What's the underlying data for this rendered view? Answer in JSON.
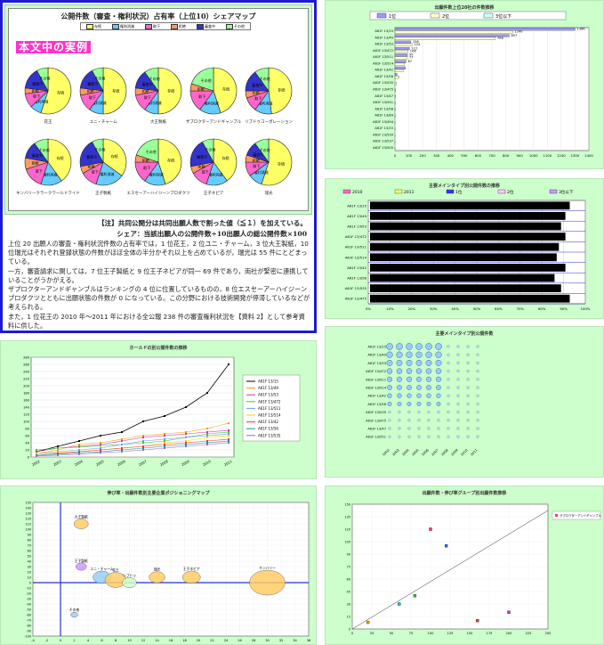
{
  "main": {
    "pie_title": "公開件数（審査・権利状況）占有率（上位10）シェアマップ",
    "badge": "本文中の実例",
    "legend": [
      {
        "label": "存続",
        "color": "#ffff66"
      },
      {
        "label": "権利消滅",
        "color": "#66ccff"
      },
      {
        "label": "取下",
        "color": "#ff66cc"
      },
      {
        "label": "拒絶",
        "color": "#ff9966"
      },
      {
        "label": "審査中",
        "color": "#3333cc"
      },
      {
        "label": "その他",
        "color": "#99ff99"
      }
    ],
    "note1": "【注】共同公開分は共同出願人数で割った値（≦１）を加えている。",
    "note2": "シェア：当該出願人の公開件数÷10出願人の総公開件数×100",
    "paragraphs": [
      "上位 20 出願人の審査・権利状況件数の占有率では，1 位花王，2 位ユニ・チャーム，3 位大王製紙，10 位瑞光はそれぞれ登録状態の件数がほぼ全体の半分かそれ以上を占めているが，瑞光は 55 件にとどまっている。",
      "一方，審査請求に関しては，7 位王子製紙と 9 位王子ネピアが同一 69 件であり，両社が緊密に連携していることがうかがえる。",
      "ザプロクターアンドギャンブルはランキングの 4 位に位置しているものの，8 位エスセーアーハイジーンプロダクツとともに出願状態の件数が 0 になっている。この分野における技術開発が停滞しているなどが考えられる。",
      "また，1 位花王の 2010 年～2011 年における全公報 238 件の審査権利状況を【資料 2】として参考資料に供した。"
    ]
  },
  "chart_data": [
    {
      "type": "pie",
      "title": "公開件数（審査・権利状況）占有率（上位10）シェアマップ",
      "categories": [
        "存続",
        "権利消滅",
        "取下",
        "拒絶",
        "審査中",
        "その他"
      ],
      "pies": [
        {
          "name": "花王",
          "values": [
            55,
            8,
            10,
            4,
            15,
            8
          ]
        },
        {
          "name": "ユニ・チャーム",
          "values": [
            50,
            10,
            12,
            5,
            15,
            8
          ]
        },
        {
          "name": "大王製紙",
          "values": [
            50,
            10,
            12,
            5,
            13,
            10
          ]
        },
        {
          "name": "ザプロクターアンドギャンブル",
          "values": [
            45,
            15,
            15,
            5,
            0,
            20
          ]
        },
        {
          "name": "リブドゥコーポレーション",
          "values": [
            48,
            12,
            10,
            5,
            15,
            10
          ]
        },
        {
          "name": "キンバリークラークワールドワイド",
          "values": [
            40,
            15,
            15,
            8,
            12,
            10
          ]
        },
        {
          "name": "王子製紙",
          "values": [
            35,
            20,
            12,
            5,
            20,
            8
          ]
        },
        {
          "name": "エスセーアーハイジーンプロダクツ",
          "values": [
            45,
            15,
            15,
            5,
            0,
            20
          ]
        },
        {
          "name": "王子ネピア",
          "values": [
            40,
            15,
            12,
            5,
            20,
            8
          ]
        },
        {
          "name": "瑞光",
          "values": [
            55,
            10,
            10,
            5,
            10,
            10
          ]
        }
      ]
    },
    {
      "type": "bar",
      "title": "出願件数上位20社の件数推移",
      "legend": [
        "1位",
        "2位",
        "3位以下"
      ],
      "categories": [
        "A61F 13/15",
        "A61F 13/49",
        "A61F 13/53",
        "A61F 13/472",
        "A61F 13/511",
        "A61F 13/514",
        "A61F 13/42",
        "A61F 13/56",
        "A61F 13/535",
        "A61F 13/475",
        "A61F 13/47",
        "A61F 13/551",
        "A61F 13/58",
        "A61F 13/84",
        "A61F 13/494",
        "A61F 13/15",
        "A61F 13/539",
        "A61F 13/537",
        "A61F 13/505"
      ],
      "series": [
        {
          "name": "1位",
          "values": [
            1300,
            825,
            115,
            105,
            90,
            80,
            75,
            15,
            0,
            0,
            0,
            0,
            0,
            0,
            0,
            0,
            0,
            0,
            0
          ]
        },
        {
          "name": "2位",
          "values": [
            850,
            725,
            125,
            95,
            90,
            70,
            60,
            30,
            10,
            5,
            5,
            3,
            3,
            3,
            2,
            2,
            2,
            2,
            2
          ]
        }
      ],
      "xlim": [
        0,
        1400
      ],
      "x_ticks": [
        "0",
        "100",
        "200",
        "300",
        "400",
        "500",
        "600",
        "700",
        "800",
        "900",
        "1000",
        "1100",
        "1200",
        "1300",
        "1400"
      ],
      "data_labels": [
        "1366",
        "1240",
        "857",
        "706",
        "158",
        "124",
        "112",
        "106",
        "95",
        "77",
        "67"
      ]
    },
    {
      "type": "bar",
      "title": "主要メインタイプ別公開件数の推移",
      "legend": [
        "2010",
        "2011",
        "1位",
        "2位",
        "3位以下"
      ],
      "categories": [
        "A61F 13/15",
        "A61F 13/49",
        "A61F 13/53",
        "A61F 13/472",
        "A61F 13/511",
        "A61F 13/514",
        "A61F 13/42",
        "A61F 13/56",
        "A61F 13/535",
        "A61F 13/475"
      ],
      "x_ticks": [
        "0%",
        "10%",
        "20%",
        "30%",
        "40%",
        "50%",
        "60%",
        "70%",
        "80%",
        "90%",
        "100%"
      ]
    },
    {
      "type": "line",
      "title": "ホールドの別公開件数の推移",
      "x": [
        "2002",
        "2003",
        "2004",
        "2005",
        "2006",
        "2007",
        "2008",
        "2009",
        "2010",
        "2011"
      ],
      "series": [
        {
          "name": "A61F 13/15",
          "values": [
            15,
            30,
            45,
            60,
            70,
            100,
            115,
            140,
            180,
            260
          ]
        },
        {
          "name": "A61F 13/49",
          "values": [
            10,
            20,
            35,
            40,
            50,
            60,
            65,
            70,
            80,
            95
          ]
        },
        {
          "name": "A61F 13/53",
          "values": [
            15,
            25,
            30,
            35,
            45,
            55,
            60,
            65,
            70,
            75
          ]
        },
        {
          "name": "A61F 13/472",
          "values": [
            20,
            25,
            28,
            32,
            35,
            40,
            45,
            55,
            65,
            70
          ]
        },
        {
          "name": "A61F 13/511",
          "values": [
            10,
            15,
            20,
            25,
            35,
            45,
            50,
            55,
            60,
            65
          ]
        },
        {
          "name": "A61F 13/514",
          "values": [
            10,
            12,
            15,
            20,
            25,
            30,
            40,
            45,
            55,
            60
          ]
        },
        {
          "name": "A61F 13/42",
          "values": [
            5,
            10,
            15,
            20,
            25,
            30,
            35,
            40,
            45,
            50
          ]
        },
        {
          "name": "A61F 13/56",
          "values": [
            5,
            8,
            12,
            15,
            20,
            25,
            30,
            35,
            40,
            45
          ]
        },
        {
          "name": "A61F 13/535",
          "values": [
            3,
            5,
            8,
            12,
            15,
            20,
            25,
            30,
            35,
            40
          ]
        }
      ],
      "ylim": [
        0,
        280
      ]
    },
    {
      "type": "scatter",
      "title": "主要メインタイプ別公開件数",
      "rows": [
        "A61F 13/15",
        "A61F 13/49",
        "A61F 13/53",
        "A61F 13/472",
        "A61F 13/511",
        "A61F 13/514",
        "A61F 13/42",
        "A61F 13/56",
        "A61F 13/535",
        "A61F 13/475",
        "A61F 13/47",
        "A61F 13/551"
      ],
      "cols": [
        "2002",
        "2003",
        "2004",
        "2005",
        "2006",
        "2007",
        "2008",
        "2009",
        "2010",
        "2011"
      ]
    },
    {
      "type": "scatter",
      "title": "伸び率・出願件数別主要企業ポジショニングマップ",
      "points": [
        {
          "name": "大王製紙",
          "x": 3,
          "y": 110,
          "size": 8
        },
        {
          "name": "王子製紙",
          "x": 3,
          "y": 30,
          "size": 6
        },
        {
          "name": "ユニ・チャーム",
          "x": 6,
          "y": 10,
          "size": 10
        },
        {
          "name": "花王",
          "x": 8,
          "y": 5,
          "size": 12
        },
        {
          "name": "リブドゥ",
          "x": 10,
          "y": 0,
          "size": 8
        },
        {
          "name": "瑞光",
          "x": 14,
          "y": 10,
          "size": 9
        },
        {
          "name": "王子ネピア",
          "x": 19,
          "y": 10,
          "size": 10
        },
        {
          "name": "キンバリー",
          "x": 30,
          "y": 0,
          "size": 20
        },
        {
          "name": "その他",
          "x": 2,
          "y": -60,
          "size": 4
        }
      ],
      "xlim": [
        -4,
        36
      ],
      "ylim": [
        -100,
        150
      ]
    },
    {
      "type": "scatter",
      "title": "出願件数・伸び率グループ別出願件数推移",
      "legend": "ザプロクターアンドギャンブル",
      "points": [
        {
          "x": 100,
          "y": 120
        },
        {
          "x": 80,
          "y": 40
        },
        {
          "x": 120,
          "y": 100
        },
        {
          "x": 20,
          "y": 8
        },
        {
          "x": 200,
          "y": 20
        },
        {
          "x": 60,
          "y": 30
        },
        {
          "x": 160,
          "y": 10
        }
      ],
      "xlim": [
        0,
        250
      ],
      "ylim": [
        0,
        150
      ]
    }
  ]
}
